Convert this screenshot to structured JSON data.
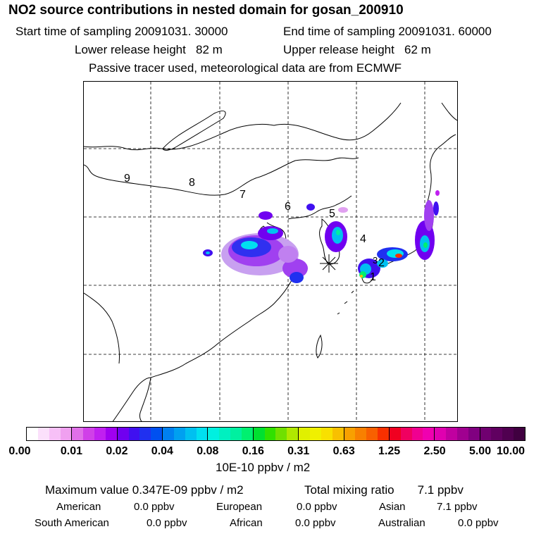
{
  "header": {
    "title": "NO2 source contributions in nested domain for gosan_200910",
    "start_label": "Start time of sampling 20091031. 30000",
    "end_label": "End time of sampling 20091031. 60000",
    "lower_label": "Lower release height   82 m",
    "upper_label": "Upper release height   62 m",
    "note": "Passive tracer used, meteorological data are from ECMWF"
  },
  "map": {
    "region_labels": [
      "9",
      "8",
      "7",
      "6",
      "5",
      "4",
      "3",
      "2",
      "1"
    ]
  },
  "colorbar": {
    "ticks": [
      "0.00",
      "0.01",
      "0.02",
      "0.04",
      "0.08",
      "0.16",
      "0.31",
      "0.63",
      "1.25",
      "2.50",
      "5.00",
      "10.00"
    ],
    "unit": "10E-10 ppbv / m2",
    "colors": [
      [
        "#ffffff",
        "#fbe0fb",
        "#f7c0f7",
        "#f0a0f0"
      ],
      [
        "#e070e8",
        "#d040e8",
        "#c020f0",
        "#a000f0"
      ],
      [
        "#7000f0",
        "#4010f0",
        "#2030f0",
        "#0050f0"
      ],
      [
        "#0080f0",
        "#00a0f0",
        "#00c0f0",
        "#00e0f0"
      ],
      [
        "#00f0e0",
        "#00f0c0",
        "#00f0a0",
        "#00f070"
      ],
      [
        "#00e030",
        "#30e000",
        "#70e000",
        "#b0e800"
      ],
      [
        "#e0f000",
        "#f0f000",
        "#f8e000",
        "#f8c000"
      ],
      [
        "#f8a000",
        "#f88000",
        "#f86000",
        "#f83000"
      ],
      [
        "#f00020",
        "#f00060",
        "#f00090",
        "#f000b0"
      ],
      [
        "#e000b0",
        "#c000a0",
        "#a00090",
        "#800080"
      ],
      [
        "#700070",
        "#600060",
        "#500050",
        "#400040"
      ]
    ]
  },
  "summary": {
    "max_value": "Maximum value  0.347E-09 ppbv / m2",
    "total": "Total mixing ratio       7.1 ppbv",
    "regions": [
      {
        "name": "American",
        "value": "0.0 ppbv"
      },
      {
        "name": "European",
        "value": "0.0 ppbv"
      },
      {
        "name": "Asian",
        "value": "7.1 ppbv"
      },
      {
        "name": "South American",
        "value": "0.0 ppbv"
      },
      {
        "name": "African",
        "value": "0.0 ppbv"
      },
      {
        "name": "Australian",
        "value": "0.0 ppbv"
      }
    ]
  }
}
